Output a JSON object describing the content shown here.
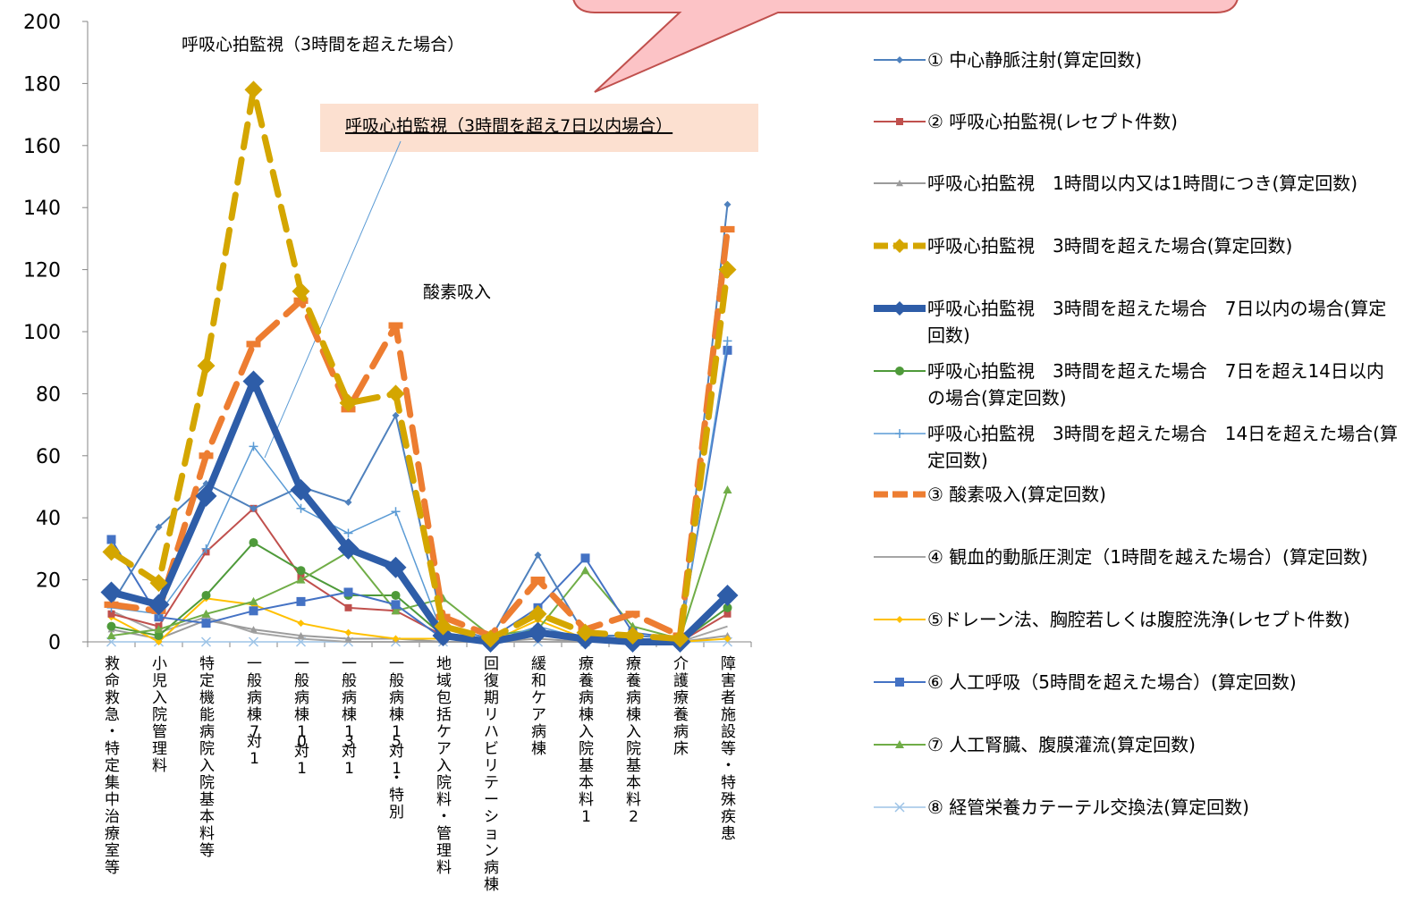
{
  "chart_data": {
    "type": "line",
    "ylim": [
      0,
      200
    ],
    "yticks": [
      0,
      20,
      40,
      60,
      80,
      100,
      120,
      140,
      160,
      180,
      200
    ],
    "categories": [
      "救命救急・特定集中治療室等",
      "小児入院管理料",
      "特定機能病院入院基本料等",
      "一般病棟7対1",
      "一般病棟10対1",
      "一般病棟13対1",
      "一般病棟15対1・特別",
      "地域包括ケア入院料・管理料",
      "回復期リハビリテーション病棟",
      "緩和ケア病棟",
      "療養病棟入院基本料1",
      "療養病棟入院基本料2",
      "介護療養病床",
      "障害者施設等・特殊疾患"
    ],
    "series": [
      {
        "name": "① 中心静脈注射(算定回数)",
        "color": "#4F81BD",
        "values": [
          12,
          37,
          51,
          43,
          50,
          45,
          73,
          5,
          1,
          28,
          2,
          2,
          1,
          141
        ]
      },
      {
        "name": "② 呼吸心拍監視(レセプト件数)",
        "color": "#C0504D",
        "values": [
          9,
          5,
          29,
          43,
          21,
          11,
          10,
          2,
          1,
          3,
          1,
          1,
          0,
          9
        ]
      },
      {
        "name": "呼吸心拍監視　1時間以内又は1時間につき(算定回数)",
        "color": "#9B9B9B",
        "values": [
          4,
          1,
          7,
          4,
          2,
          1,
          1,
          0,
          0,
          1,
          0,
          0,
          0,
          2
        ]
      },
      {
        "name": "呼吸心拍監視　3時間を超えた場合(算定回数)",
        "color": "#D4A600",
        "values": [
          29,
          19,
          89,
          178,
          113,
          77,
          80,
          5,
          1,
          9,
          3,
          2,
          1,
          120
        ]
      },
      {
        "name": "呼吸心拍監視　3時間を超えた場合　7日以内の場合(算定回数)",
        "color": "#2E5DA8",
        "values": [
          16,
          12,
          47,
          84,
          49,
          30,
          24,
          2,
          0,
          3,
          1,
          0,
          0,
          15
        ]
      },
      {
        "name": "呼吸心拍監視　3時間を超えた場合　7日を超え14日以内の場合(算定回数)",
        "color": "#4E9A3A",
        "values": [
          5,
          2,
          15,
          32,
          23,
          15,
          15,
          2,
          0,
          2,
          1,
          0,
          0,
          11
        ]
      },
      {
        "name": "呼吸心拍監視　3時間を超えた場合　14日を超えた場合(算定回数)",
        "color": "#5B9BD5",
        "values": [
          11,
          9,
          30,
          63,
          43,
          35,
          42,
          2,
          0,
          5,
          1,
          1,
          0,
          97
        ]
      },
      {
        "name": "③ 酸素吸入(算定回数)",
        "color": "#ED7D31",
        "values": [
          12,
          10,
          60,
          96,
          110,
          75,
          102,
          8,
          2,
          20,
          4,
          9,
          2,
          133
        ]
      },
      {
        "name": "④ 観血的動脈圧測定（1時間を越えた場合）(算定回数)",
        "color": "#A5A5A5",
        "values": [
          10,
          3,
          8,
          3,
          1,
          0,
          0,
          0,
          0,
          0,
          0,
          0,
          0,
          5
        ]
      },
      {
        "name": "⑤ドレーン法、胸腔若しくは腹腔洗浄(レセプト件数)",
        "color": "#FFC000",
        "values": [
          8,
          0,
          14,
          12,
          6,
          3,
          1,
          1,
          0,
          7,
          1,
          1,
          0,
          1
        ]
      },
      {
        "name": "⑥ 人工呼吸（5時間を超えた場合）(算定回数)",
        "color": "#4472C4",
        "values": [
          33,
          8,
          6,
          10,
          13,
          16,
          12,
          1,
          1,
          11,
          27,
          3,
          1,
          94
        ]
      },
      {
        "name": "⑦ 人工腎臓、腹膜灌流(算定回数)",
        "color": "#70AD47",
        "values": [
          2,
          4,
          9,
          13,
          20,
          29,
          10,
          14,
          2,
          4,
          23,
          5,
          1,
          49
        ]
      },
      {
        "name": "⑧ 経管栄養カテーテル交換法(算定回数)",
        "color": "#9DC3E6",
        "values": [
          0,
          0,
          0,
          0,
          0,
          0,
          0,
          0,
          0,
          0,
          0,
          0,
          0,
          0
        ]
      }
    ],
    "annotations": {
      "top_label": "呼吸心拍監視（3時間を超えた場合）",
      "callout_label": "呼吸心拍監視（3時間を超え7日以内場合）",
      "oxygen_label": "酸素吸入"
    }
  }
}
